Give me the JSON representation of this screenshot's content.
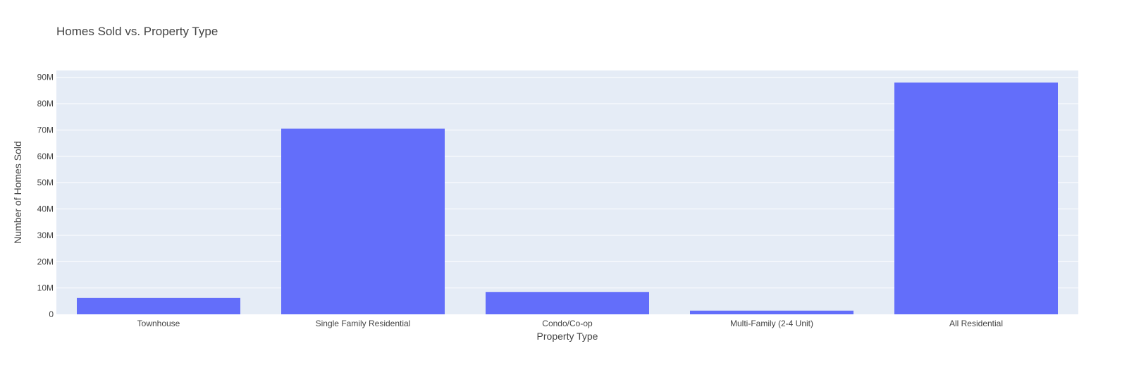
{
  "chart_data": {
    "type": "bar",
    "title": "Homes Sold vs. Property Type",
    "xlabel": "Property Type",
    "ylabel": "Number of Homes Sold",
    "categories": [
      "Townhouse",
      "Single Family Residential",
      "Condo/Co-op",
      "Multi-Family (2-4 Unit)",
      "All Residential"
    ],
    "values": [
      6200000,
      70500000,
      8500000,
      1400000,
      88000000
    ],
    "ylim": [
      0,
      92600000
    ],
    "yticks": [
      0,
      10000000,
      20000000,
      30000000,
      40000000,
      50000000,
      60000000,
      70000000,
      80000000,
      90000000
    ],
    "ytick_labels": [
      "0",
      "10M",
      "20M",
      "30M",
      "40M",
      "50M",
      "60M",
      "70M",
      "80M",
      "90M"
    ],
    "grid": true,
    "legend": "none",
    "colors": {
      "bar": "#636efa",
      "plot_bg": "#e5ecf6",
      "grid": "#ffffff",
      "text": "#444444"
    }
  }
}
